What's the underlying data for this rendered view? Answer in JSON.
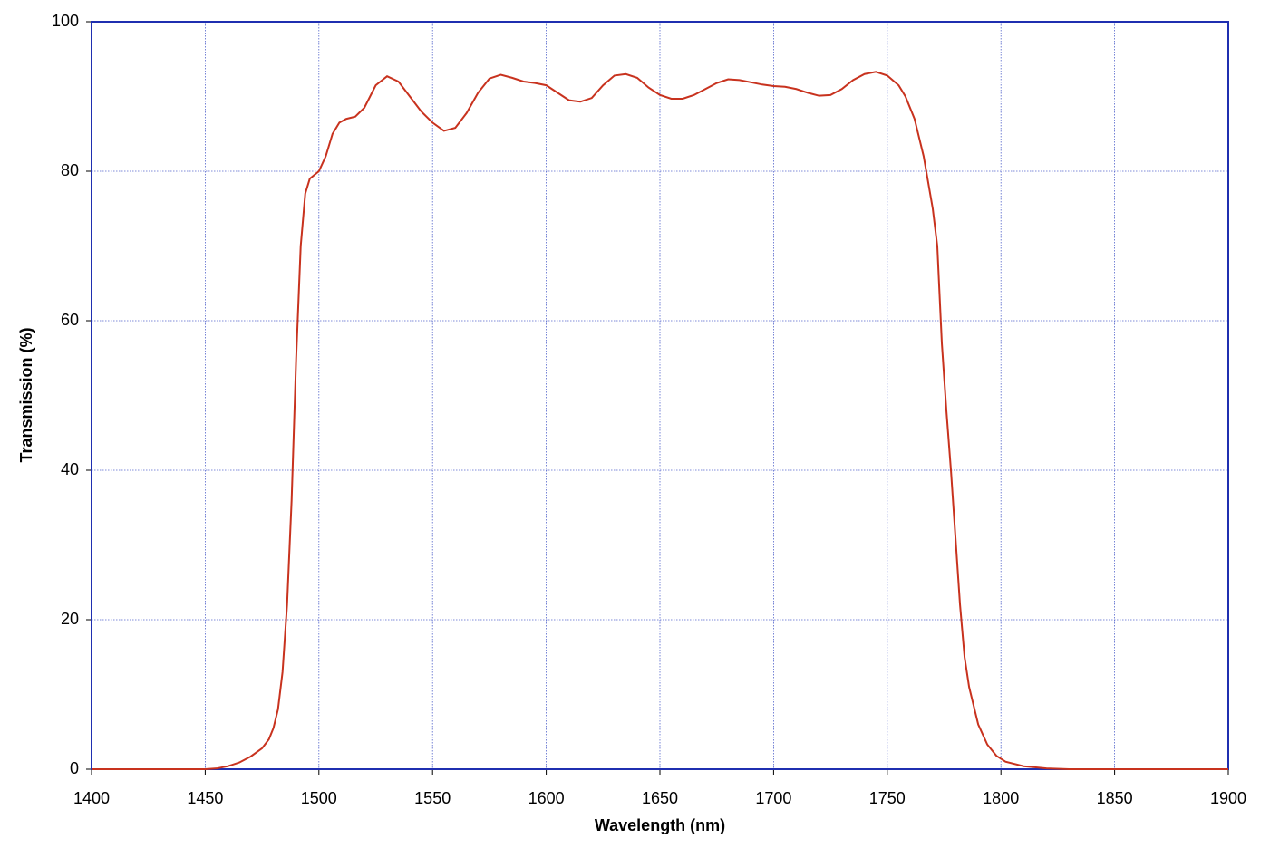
{
  "chart_data": {
    "type": "line",
    "x_label": "Wavelength (nm)",
    "y_label": "Transmission (%)",
    "xlim": [
      1400,
      1900
    ],
    "ylim": [
      0,
      100
    ],
    "xticks": [
      1400,
      1450,
      1500,
      1550,
      1600,
      1650,
      1700,
      1750,
      1800,
      1850,
      1900
    ],
    "yticks": [
      0,
      20,
      40,
      60,
      80,
      100
    ],
    "grid": true,
    "series": [
      {
        "name": "Transmission",
        "color": "#c8321e",
        "x": [
          1400,
          1450,
          1455,
          1460,
          1465,
          1470,
          1475,
          1478,
          1480,
          1482,
          1484,
          1486,
          1488,
          1490,
          1492,
          1494,
          1496,
          1500,
          1503,
          1506,
          1509,
          1512,
          1516,
          1520,
          1525,
          1530,
          1535,
          1540,
          1545,
          1550,
          1555,
          1560,
          1565,
          1570,
          1575,
          1580,
          1585,
          1590,
          1595,
          1600,
          1605,
          1610,
          1615,
          1620,
          1625,
          1630,
          1635,
          1640,
          1645,
          1650,
          1655,
          1660,
          1665,
          1670,
          1675,
          1680,
          1685,
          1690,
          1695,
          1700,
          1705,
          1710,
          1715,
          1720,
          1725,
          1730,
          1735,
          1740,
          1745,
          1750,
          1755,
          1758,
          1762,
          1766,
          1770,
          1772,
          1774,
          1776,
          1778,
          1780,
          1782,
          1784,
          1786,
          1790,
          1794,
          1798,
          1802,
          1810,
          1820,
          1830,
          1900
        ],
        "values": [
          0,
          0,
          0.1,
          0.4,
          0.9,
          1.7,
          2.8,
          4,
          5.5,
          8,
          13,
          22,
          36,
          55,
          70,
          77,
          79,
          80,
          82,
          85,
          86.5,
          87,
          87.3,
          88.5,
          91.5,
          92.7,
          92,
          90,
          88,
          86.5,
          85.4,
          85.8,
          87.8,
          90.5,
          92.4,
          92.9,
          92.5,
          92,
          91.8,
          91.5,
          90.5,
          89.5,
          89.3,
          89.8,
          91.5,
          92.8,
          93,
          92.5,
          91.2,
          90.2,
          89.7,
          89.7,
          90.2,
          91,
          91.8,
          92.3,
          92.2,
          91.9,
          91.6,
          91.4,
          91.3,
          91,
          90.5,
          90.1,
          90.2,
          91,
          92.2,
          93,
          93.3,
          92.8,
          91.5,
          90,
          87,
          82,
          75,
          70,
          57,
          48,
          40,
          31,
          22,
          15,
          11,
          6,
          3.3,
          1.8,
          1,
          0.4,
          0.1,
          0,
          0
        ]
      }
    ]
  }
}
